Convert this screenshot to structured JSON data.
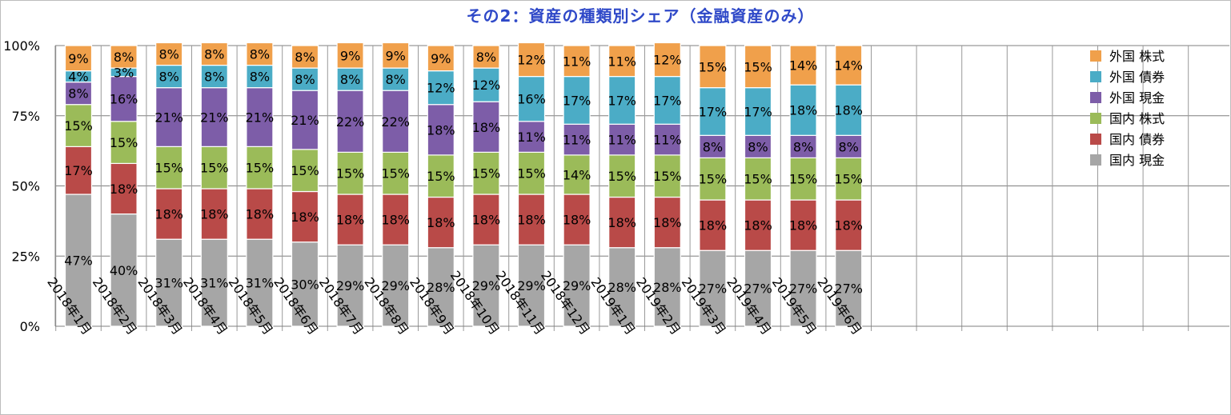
{
  "chart_data": {
    "type": "bar",
    "stacked": true,
    "title": "その2：資産の種類別シェア（金融資産のみ）",
    "xlabel": "",
    "ylabel": "",
    "ylim": [
      0,
      100
    ],
    "yticks": [
      "0%",
      "25%",
      "50%",
      "75%",
      "100%"
    ],
    "grid": true,
    "legend_position": "top-right",
    "categories": [
      "2018年1月",
      "2018年2月",
      "2018年3月",
      "2018年4月",
      "2018年5月",
      "2018年6月",
      "2018年7月",
      "2018年8月",
      "2018年9月",
      "2018年10月",
      "2018年11月",
      "2018年12月",
      "2019年1月",
      "2019年2月",
      "2019年3月",
      "2019年4月",
      "2019年5月",
      "2019年6月"
    ],
    "series": [
      {
        "name": "国内 現金",
        "color": "#a6a6a6",
        "values": [
          47,
          40,
          31,
          31,
          31,
          30,
          29,
          29,
          28,
          29,
          29,
          29,
          28,
          28,
          27,
          27,
          27,
          27
        ]
      },
      {
        "name": "国内 債券",
        "color": "#b94a48",
        "values": [
          17,
          18,
          18,
          18,
          18,
          18,
          18,
          18,
          18,
          18,
          18,
          18,
          18,
          18,
          18,
          18,
          18,
          18
        ]
      },
      {
        "name": "国内 株式",
        "color": "#9bbb59",
        "values": [
          15,
          15,
          15,
          15,
          15,
          15,
          15,
          15,
          15,
          15,
          15,
          14,
          15,
          15,
          15,
          15,
          15,
          15
        ]
      },
      {
        "name": "外国 現金",
        "color": "#7d5da8",
        "values": [
          8,
          16,
          21,
          21,
          21,
          21,
          22,
          22,
          18,
          18,
          11,
          11,
          11,
          11,
          8,
          8,
          8,
          8
        ]
      },
      {
        "name": "外国 債券",
        "color": "#4bacc6",
        "values": [
          4,
          3,
          8,
          8,
          8,
          8,
          8,
          8,
          12,
          12,
          16,
          17,
          17,
          17,
          17,
          17,
          18,
          18
        ]
      },
      {
        "name": "外国 株式",
        "color": "#f0a04b",
        "values": [
          9,
          8,
          8,
          8,
          8,
          8,
          9,
          9,
          9,
          8,
          12,
          11,
          11,
          12,
          15,
          15,
          14,
          14
        ]
      }
    ],
    "legend_order": [
      "外国 株式",
      "外国 債券",
      "外国 現金",
      "国内 株式",
      "国内 債券",
      "国内 現金"
    ]
  }
}
